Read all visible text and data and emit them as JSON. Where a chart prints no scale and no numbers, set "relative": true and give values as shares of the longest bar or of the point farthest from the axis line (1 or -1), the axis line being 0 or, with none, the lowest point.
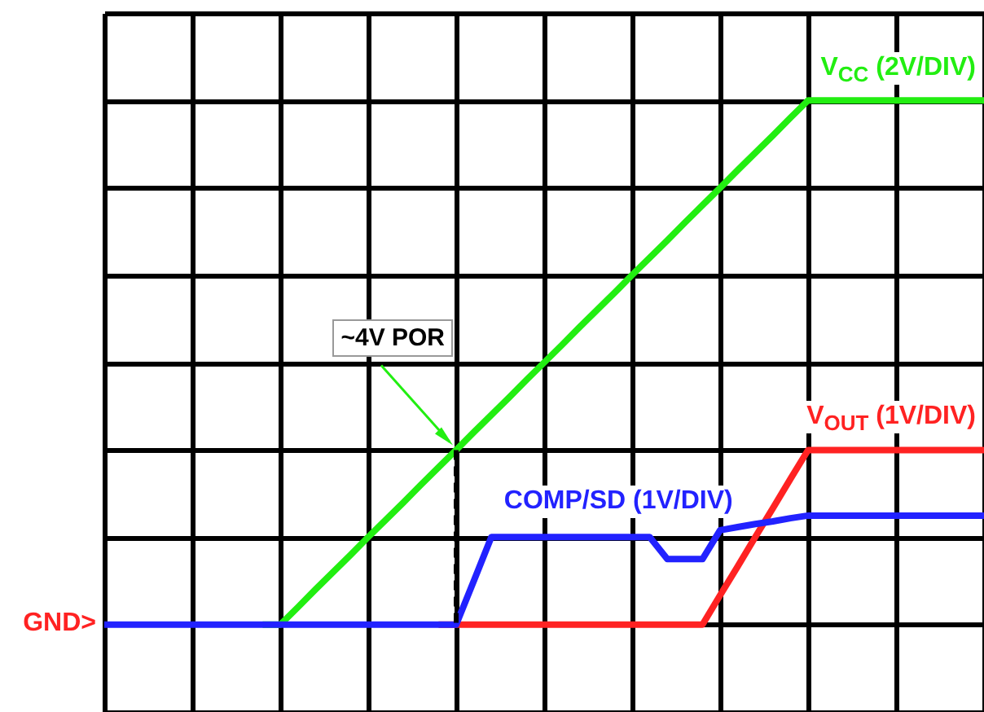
{
  "chart_data": {
    "type": "line",
    "relative": true,
    "legend": false,
    "grid": true,
    "marker": "none",
    "categories": [
      null,
      null,
      null,
      null,
      null,
      null,
      null,
      null,
      null,
      null,
      null,
      null,
      null,
      null,
      null,
      null,
      null,
      null,
      null,
      null,
      null,
      null,
      null,
      null,
      null,
      null,
      null,
      null,
      null,
      null,
      null,
      null,
      null,
      null,
      null,
      null,
      null,
      null,
      null,
      null,
      null,
      null,
      null,
      null,
      null,
      null,
      null,
      null,
      null,
      null,
      null
    ],
    "series": [
      {
        "name": "V$_{CC}$ (2V/DIV)",
        "color": "#22ee11",
        "values": [
          null,
          null,
          null,
          null,
          null,
          null,
          null,
          null,
          null,
          0,
          0,
          0.033,
          0.067,
          0.1,
          0.133,
          0.167,
          0.2,
          0.233,
          0.267,
          0.3,
          0.333,
          0.367,
          0.4,
          0.433,
          0.467,
          0.5,
          0.533,
          0.567,
          0.6,
          0.633,
          0.667,
          0.7,
          0.733,
          0.767,
          0.8,
          0.833,
          0.867,
          0.9,
          0.933,
          0.967,
          1,
          1,
          1,
          1,
          1,
          1,
          1,
          1,
          1,
          1,
          1
        ]
      },
      {
        "name": "V$_{OUT}$ (1V/DIV)",
        "color": "#ff2222",
        "values": [
          null,
          null,
          null,
          null,
          null,
          null,
          null,
          null,
          null,
          null,
          null,
          null,
          null,
          null,
          null,
          null,
          null,
          null,
          null,
          0,
          0,
          0,
          0,
          0,
          0,
          0,
          0,
          0,
          0,
          0,
          0,
          0,
          0,
          0,
          0,
          0.056,
          0.111,
          0.167,
          0.222,
          0.278,
          0.333,
          0.333,
          0.333,
          0.333,
          0.333,
          0.333,
          0.333,
          0.333,
          0.333,
          0.333,
          0.333
        ]
      },
      {
        "name": "COMP/SD (1V/DIV)",
        "color": "#2222ff",
        "values": [
          0,
          0,
          0,
          0,
          0,
          0,
          0,
          0,
          0,
          0,
          0,
          0,
          0,
          0,
          0,
          0,
          0,
          0,
          0,
          0,
          0,
          0.083,
          0.167,
          0.167,
          0.167,
          0.167,
          0.167,
          0.167,
          0.167,
          0.167,
          0.167,
          0.167,
          0.125,
          0.125,
          0.125,
          0.18,
          0.186,
          0.192,
          0.197,
          0.203,
          0.208,
          0.208,
          0.208,
          0.208,
          0.208,
          0.208,
          0.208,
          0.208,
          0.208,
          0.208,
          0.208
        ]
      }
    ],
    "annotations": [
      "~4V POR",
      "GND>"
    ]
  }
}
